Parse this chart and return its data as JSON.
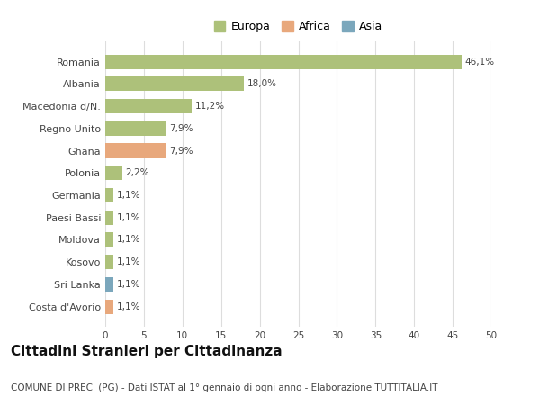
{
  "categories": [
    "Romania",
    "Albania",
    "Macedonia d/N.",
    "Regno Unito",
    "Ghana",
    "Polonia",
    "Germania",
    "Paesi Bassi",
    "Moldova",
    "Kosovo",
    "Sri Lanka",
    "Costa d'Avorio"
  ],
  "values": [
    46.1,
    18.0,
    11.2,
    7.9,
    7.9,
    2.2,
    1.1,
    1.1,
    1.1,
    1.1,
    1.1,
    1.1
  ],
  "labels": [
    "46,1%",
    "18,0%",
    "11,2%",
    "7,9%",
    "7,9%",
    "2,2%",
    "1,1%",
    "1,1%",
    "1,1%",
    "1,1%",
    "1,1%",
    "1,1%"
  ],
  "colors": [
    "#adc17a",
    "#adc17a",
    "#adc17a",
    "#adc17a",
    "#e8a87c",
    "#adc17a",
    "#adc17a",
    "#adc17a",
    "#adc17a",
    "#adc17a",
    "#7ba7bc",
    "#e8a87c"
  ],
  "legend_labels": [
    "Europa",
    "Africa",
    "Asia"
  ],
  "legend_colors": [
    "#adc17a",
    "#e8a87c",
    "#7ba7bc"
  ],
  "title": "Cittadini Stranieri per Cittadinanza",
  "subtitle": "COMUNE DI PRECI (PG) - Dati ISTAT al 1° gennaio di ogni anno - Elaborazione TUTTITALIA.IT",
  "xlim": [
    0,
    50
  ],
  "xticks": [
    0,
    5,
    10,
    15,
    20,
    25,
    30,
    35,
    40,
    45,
    50
  ],
  "background_color": "#ffffff",
  "grid_color": "#dddddd",
  "bar_height": 0.65,
  "title_fontsize": 11,
  "subtitle_fontsize": 7.5,
  "label_fontsize": 7.5,
  "tick_fontsize": 7.5,
  "legend_fontsize": 9,
  "ytick_fontsize": 8
}
